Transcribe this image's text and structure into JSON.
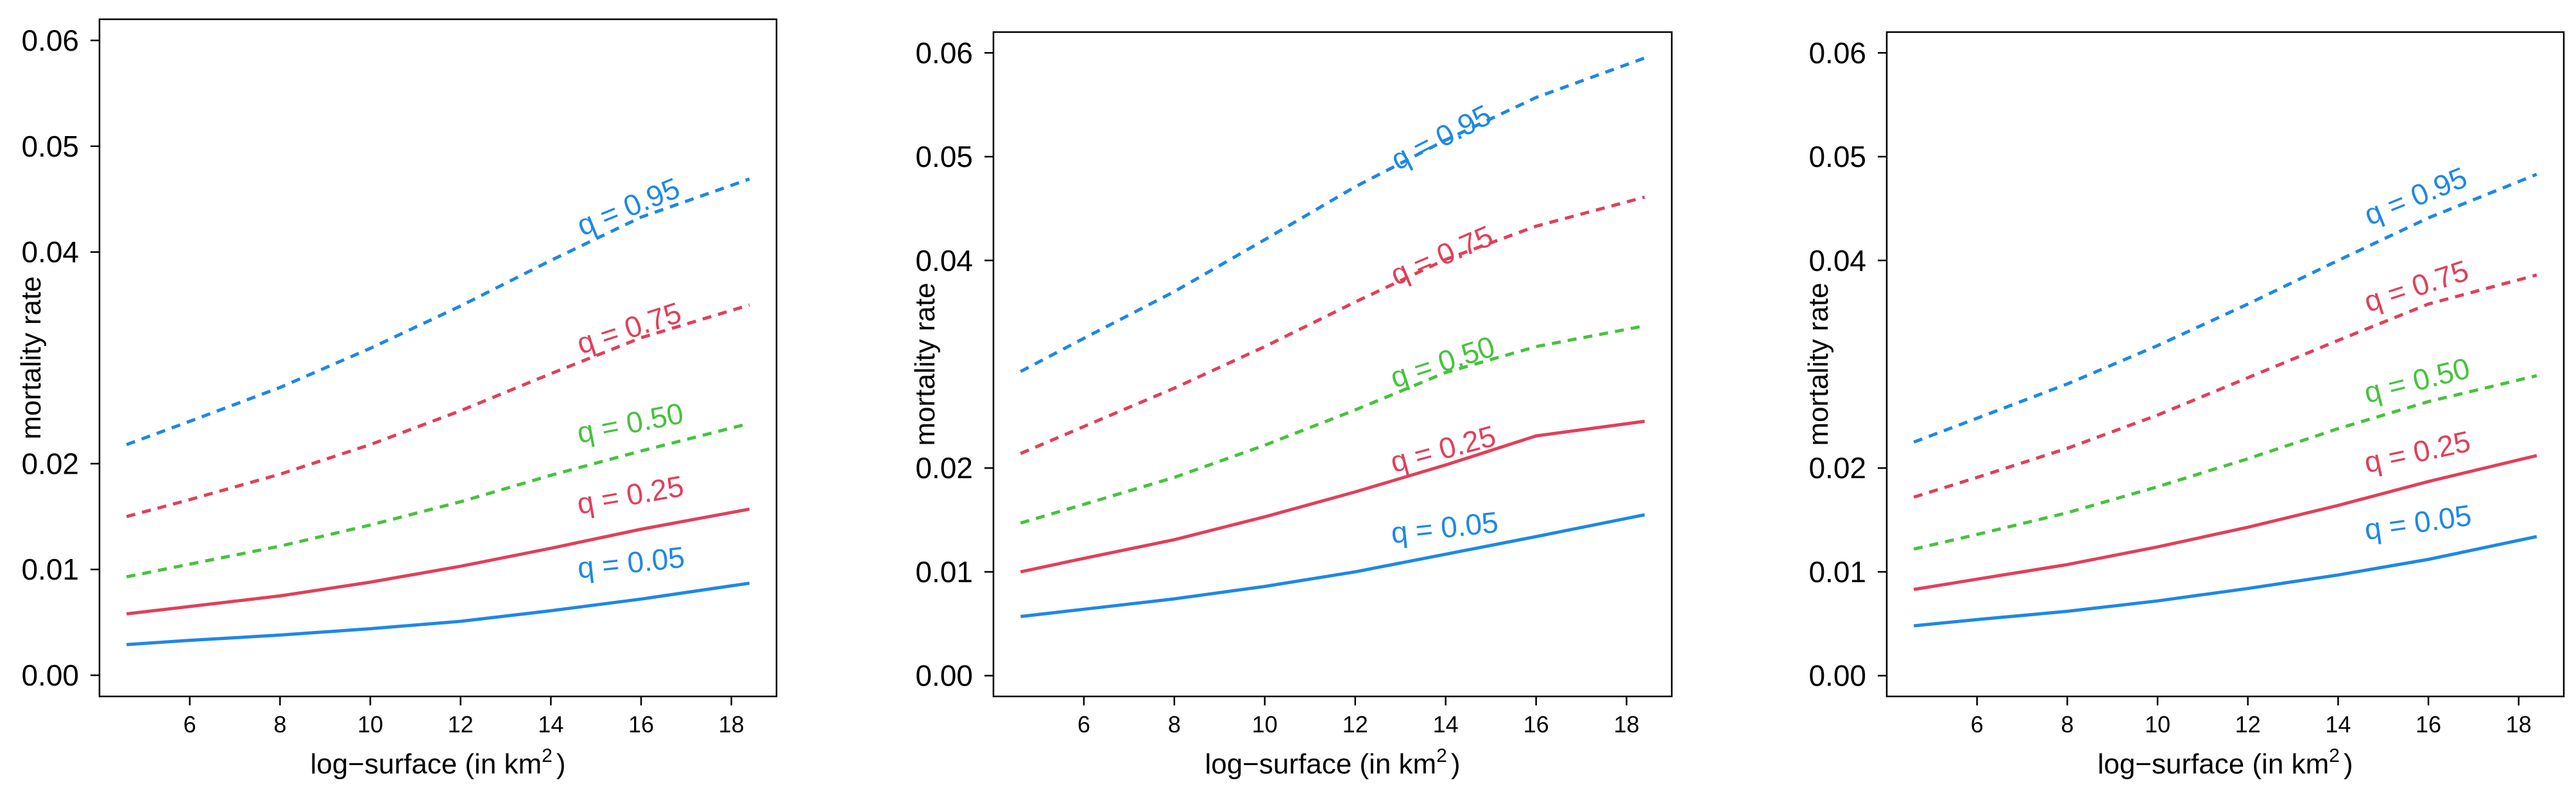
{
  "chart_data": [
    {
      "type": "line",
      "panel": "left",
      "xlabel": "log−surface (in  km",
      "xlabel_sup": "2",
      "xlabel_close": ")",
      "ylabel": "mortality rate",
      "xlim": [
        4,
        19
      ],
      "ylim": [
        -0.002,
        0.062
      ],
      "xticks": [
        6,
        8,
        10,
        12,
        14,
        16,
        18
      ],
      "yticks": [
        0.0,
        0.01,
        0.02,
        0.04,
        0.05,
        0.06
      ],
      "ytick_labels": [
        "0.00",
        "0.01",
        "0.02",
        "0.04",
        "0.05",
        "0.06"
      ],
      "series": [
        {
          "name": "q = 0.05",
          "color": "#1E88E5",
          "dashed": false,
          "x": [
            4.6,
            6,
            8,
            10,
            12,
            14,
            16,
            18.4
          ],
          "values": [
            0.0029,
            0.0033,
            0.0038,
            0.0044,
            0.0051,
            0.0061,
            0.0072,
            0.0087
          ],
          "label_x": 15.8,
          "label_y": 0.0097,
          "label_angle": -6
        },
        {
          "name": "q = 0.25",
          "color": "#E0405A",
          "dashed": false,
          "x": [
            4.6,
            6,
            8,
            10,
            12,
            14,
            16,
            18.4
          ],
          "values": [
            0.0058,
            0.0065,
            0.0075,
            0.0088,
            0.0103,
            0.012,
            0.0138,
            0.0157
          ],
          "label_x": 15.8,
          "label_y": 0.0161,
          "label_angle": -10
        },
        {
          "name": "q = 0.50",
          "color": "#47C23E",
          "dashed": true,
          "x": [
            4.6,
            6,
            8,
            10,
            12,
            14,
            16,
            18.4
          ],
          "values": [
            0.0093,
            0.0105,
            0.0122,
            0.0142,
            0.0164,
            0.0189,
            0.0212,
            0.0238
          ],
          "label_x": 15.8,
          "label_y": 0.0229,
          "label_angle": -11
        },
        {
          "name": "q = 0.75",
          "color": "#E0405A",
          "dashed": true,
          "x": [
            4.6,
            6,
            8,
            10,
            12,
            14,
            16,
            18.4
          ],
          "values": [
            0.015,
            0.0166,
            0.019,
            0.0218,
            0.025,
            0.0285,
            0.0319,
            0.035
          ],
          "label_x": 15.8,
          "label_y": 0.0319,
          "label_angle": -18
        },
        {
          "name": "q = 0.95",
          "color": "#1E88E5",
          "dashed": true,
          "x": [
            4.6,
            6,
            8,
            10,
            12,
            14,
            16,
            18.4
          ],
          "values": [
            0.0218,
            0.024,
            0.0272,
            0.0309,
            0.0349,
            0.0392,
            0.0433,
            0.0469
          ],
          "label_x": 15.8,
          "label_y": 0.0434,
          "label_angle": -22
        }
      ]
    },
    {
      "type": "line",
      "panel": "middle",
      "xlabel": "log−surface (in  km",
      "xlabel_sup": "2",
      "xlabel_close": ")",
      "ylabel": "mortality rate",
      "xlim": [
        4,
        19
      ],
      "ylim": [
        -0.002,
        0.062
      ],
      "xticks": [
        6,
        8,
        10,
        12,
        14,
        16,
        18
      ],
      "yticks": [
        0.0,
        0.01,
        0.02,
        0.04,
        0.05,
        0.06
      ],
      "ytick_labels": [
        "0.00",
        "0.01",
        "0.02",
        "0.04",
        "0.05",
        "0.06"
      ],
      "series": [
        {
          "name": "q = 0.05",
          "color": "#1E88E5",
          "dashed": false,
          "x": [
            4.6,
            6,
            8,
            10,
            12,
            14,
            16,
            18.4
          ],
          "values": [
            0.0057,
            0.0064,
            0.0074,
            0.0086,
            0.01,
            0.0117,
            0.0134,
            0.0155
          ],
          "label_x": 14.0,
          "label_y": 0.0133,
          "label_angle": -6
        },
        {
          "name": "q = 0.25",
          "color": "#E0405A",
          "dashed": false,
          "x": [
            4.6,
            6,
            8,
            10,
            12,
            14,
            16,
            18.4
          ],
          "values": [
            0.01,
            0.0113,
            0.0131,
            0.0153,
            0.0177,
            0.0203,
            0.0231,
            0.0245
          ],
          "label_x": 14.0,
          "label_y": 0.0209,
          "label_angle": -15
        },
        {
          "name": "q = 0.50",
          "color": "#47C23E",
          "dashed": true,
          "x": [
            4.6,
            6,
            8,
            10,
            12,
            14,
            16,
            18.4
          ],
          "values": [
            0.0147,
            0.0165,
            0.0191,
            0.0222,
            0.0256,
            0.0292,
            0.0317,
            0.0337
          ],
          "label_x": 14.0,
          "label_y": 0.0293,
          "label_angle": -18
        },
        {
          "name": "q = 0.75",
          "color": "#E0405A",
          "dashed": true,
          "x": [
            4.6,
            6,
            8,
            10,
            12,
            14,
            16,
            18.4
          ],
          "values": [
            0.0214,
            0.024,
            0.0277,
            0.0317,
            0.036,
            0.0401,
            0.0433,
            0.0461
          ],
          "label_x": 14.0,
          "label_y": 0.0396,
          "label_angle": -23
        },
        {
          "name": "q = 0.95",
          "color": "#1E88E5",
          "dashed": true,
          "x": [
            4.6,
            6,
            8,
            10,
            12,
            14,
            16,
            18.4
          ],
          "values": [
            0.0293,
            0.0325,
            0.037,
            0.042,
            0.0471,
            0.0516,
            0.0557,
            0.0595
          ],
          "label_x": 14.0,
          "label_y": 0.051,
          "label_angle": -27
        }
      ]
    },
    {
      "type": "line",
      "panel": "right",
      "xlabel": "log−surface (in  km",
      "xlabel_sup": "2",
      "xlabel_close": ")",
      "ylabel": "mortality rate",
      "xlim": [
        4,
        19
      ],
      "ylim": [
        -0.002,
        0.062
      ],
      "xticks": [
        6,
        8,
        10,
        12,
        14,
        16,
        18
      ],
      "yticks": [
        0.0,
        0.01,
        0.02,
        0.04,
        0.05,
        0.06
      ],
      "ytick_labels": [
        "0.00",
        "0.01",
        "0.02",
        "0.04",
        "0.05",
        "0.06"
      ],
      "series": [
        {
          "name": "q = 0.05",
          "color": "#1E88E5",
          "dashed": false,
          "x": [
            4.6,
            6,
            8,
            10,
            12,
            14,
            16,
            18.4
          ],
          "values": [
            0.0048,
            0.0054,
            0.0062,
            0.0072,
            0.0084,
            0.0097,
            0.0112,
            0.0134
          ],
          "label_x": 15.8,
          "label_y": 0.0138,
          "label_angle": -8
        },
        {
          "name": "q = 0.25",
          "color": "#E0405A",
          "dashed": false,
          "x": [
            4.6,
            6,
            8,
            10,
            12,
            14,
            16,
            18.4
          ],
          "values": [
            0.0083,
            0.0093,
            0.0107,
            0.0124,
            0.0143,
            0.0164,
            0.0187,
            0.0212
          ],
          "label_x": 15.8,
          "label_y": 0.0206,
          "label_angle": -12
        },
        {
          "name": "q = 0.50",
          "color": "#47C23E",
          "dashed": true,
          "x": [
            4.6,
            6,
            8,
            10,
            12,
            14,
            16,
            18.4
          ],
          "values": [
            0.0122,
            0.0136,
            0.0157,
            0.0182,
            0.0209,
            0.0238,
            0.0264,
            0.0289
          ],
          "label_x": 15.8,
          "label_y": 0.0275,
          "label_angle": -14
        },
        {
          "name": "q = 0.75",
          "color": "#E0405A",
          "dashed": true,
          "x": [
            4.6,
            6,
            8,
            10,
            12,
            14,
            16,
            18.4
          ],
          "values": [
            0.0172,
            0.0191,
            0.0219,
            0.0251,
            0.0287,
            0.0323,
            0.0358,
            0.0386
          ],
          "label_x": 15.8,
          "label_y": 0.0366,
          "label_angle": -18
        },
        {
          "name": "q = 0.95",
          "color": "#1E88E5",
          "dashed": true,
          "x": [
            4.6,
            6,
            8,
            10,
            12,
            14,
            16,
            18.4
          ],
          "values": [
            0.0225,
            0.0248,
            0.0281,
            0.0318,
            0.0358,
            0.04,
            0.0441,
            0.0483
          ],
          "label_x": 15.8,
          "label_y": 0.0453,
          "label_angle": -22
        }
      ]
    }
  ]
}
